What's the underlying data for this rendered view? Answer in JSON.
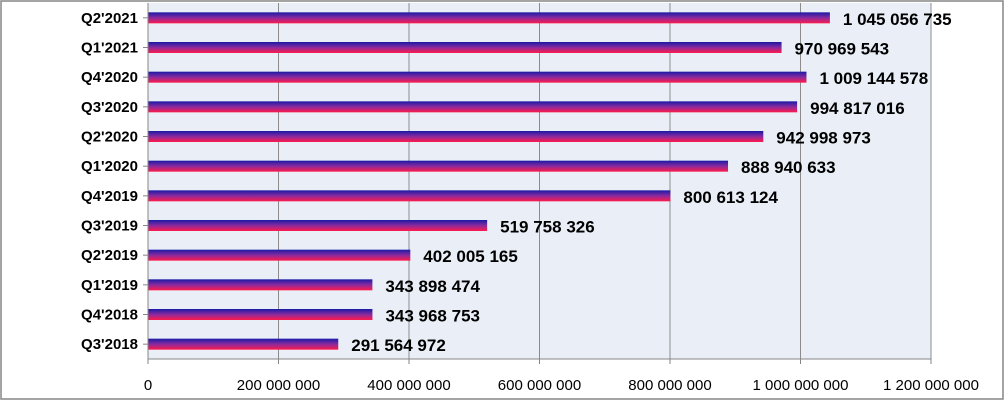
{
  "chart_data": {
    "type": "bar",
    "orientation": "horizontal",
    "categories": [
      "Q2'2021",
      "Q1'2021",
      "Q4'2020",
      "Q3'2020",
      "Q2'2020",
      "Q1'2020",
      "Q4'2019",
      "Q3'2019",
      "Q2'2019",
      "Q1'2019",
      "Q4'2018",
      "Q3'2018"
    ],
    "values": [
      1045056735,
      970969543,
      1009144578,
      994817016,
      942998973,
      888940633,
      800613124,
      519758326,
      402005165,
      343898474,
      343968753,
      291564972
    ],
    "value_labels": [
      "1 045 056 735",
      "970 969 543",
      "1 009 144 578",
      "994 817 016",
      "942 998 973",
      "888 940 633",
      "800 613 124",
      "519 758 326",
      "402 005 165",
      "343 898 474",
      "343 968 753",
      "291 564 972"
    ],
    "xlim": [
      0,
      1200000000
    ],
    "x_ticks": [
      0,
      200000000,
      400000000,
      600000000,
      800000000,
      1000000000,
      1200000000
    ],
    "x_tick_labels": [
      "0",
      "200 000 000",
      "400 000 000",
      "600 000 000",
      "800 000 000",
      "1 000 000 000",
      "1 200 000 000"
    ],
    "grid": "vertical",
    "legend": "none",
    "colors": {
      "bar_gradient": [
        "#1a1aa6",
        "#8a2a9e",
        "#ff1a4a"
      ],
      "plot_background": "#eaeff7",
      "gridline": "#8c8c8c"
    }
  }
}
